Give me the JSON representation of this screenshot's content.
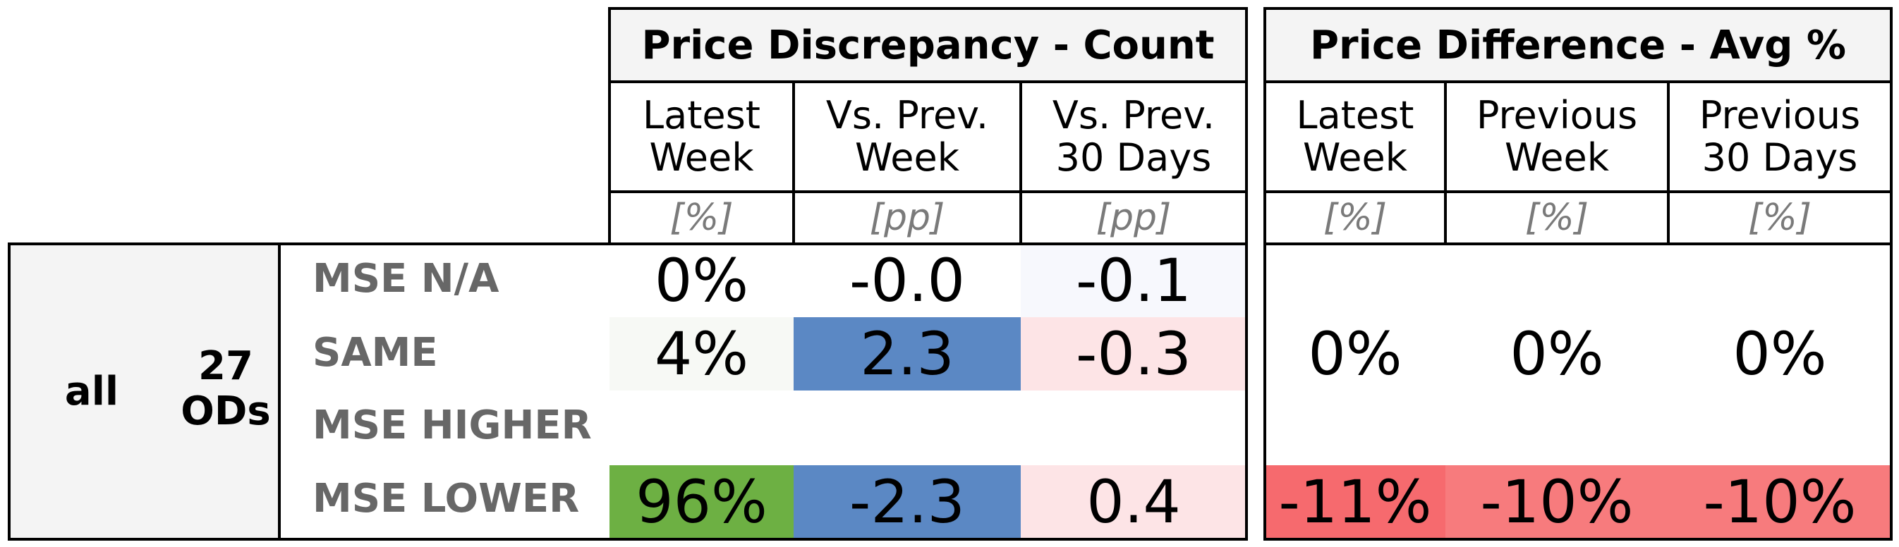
{
  "left_group": {
    "all_label": "all",
    "count": "27",
    "count_unit": "ODs"
  },
  "rows": [
    "MSE N/A",
    "SAME",
    "MSE HIGHER",
    "MSE LOWER"
  ],
  "count_table": {
    "title": "Price Discrepancy - Count",
    "columns": [
      {
        "label": "Latest\nWeek",
        "unit": "[%]"
      },
      {
        "label": "Vs. Prev.\nWeek",
        "unit": "[pp]"
      },
      {
        "label": "Vs. Prev.\n30 Days",
        "unit": "[pp]"
      }
    ],
    "values": {
      "mse_na": [
        "0%",
        "-0.0",
        "-0.1"
      ],
      "same": [
        "4%",
        "2.3",
        "-0.3"
      ],
      "mse_lower": [
        "96%",
        "-2.3",
        "0.4"
      ]
    }
  },
  "avg_table": {
    "title": "Price Difference - Avg %",
    "columns": [
      {
        "label": "Latest\nWeek",
        "unit": "[%]"
      },
      {
        "label": "Previous\nWeek",
        "unit": "[%]"
      },
      {
        "label": "Previous\n30 Days",
        "unit": "[%]"
      }
    ],
    "values": {
      "same": [
        "0%",
        "0%",
        "0%"
      ],
      "mse_lower": [
        "-11%",
        "-10%",
        "-10%"
      ]
    }
  },
  "colors": {
    "header_bg": "#f4f4f4",
    "green": "#6db043",
    "blue": "#5b88c4",
    "light_pink": "#fde4e6",
    "very_light": "#f7f9f5",
    "faint_blue": "#f7f8fd",
    "red_strong": "#f66a6e",
    "red_soft": "#f77b7d"
  }
}
